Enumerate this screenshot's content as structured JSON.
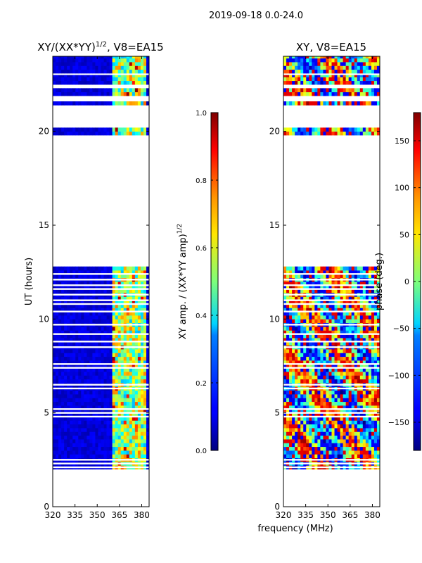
{
  "suptitle": "2019-09-18 0.0-24.0",
  "xlabel": "frequency (MHz)",
  "colors": {
    "masked": "#ffffff",
    "jet_low": "#00007f",
    "jet_high": "#7f0000"
  },
  "chart_data": [
    {
      "type": "heatmap",
      "title_main": "XY/(XX*YY)",
      "title_sup": "1/2",
      "title_tail": ", V8=EA15",
      "ylabel": "UT (hours)",
      "xlim": [
        320,
        385
      ],
      "ylim": [
        0,
        24
      ],
      "xticks": [
        320,
        335,
        350,
        365,
        380
      ],
      "yticks": [
        0,
        5,
        10,
        15,
        20
      ],
      "colorbar": {
        "label_main": "XY amp. / (XX*YY amp)",
        "label_sup": "1/2",
        "range": [
          0.0,
          1.0
        ],
        "ticks": [
          0.0,
          0.2,
          0.4,
          0.6,
          0.8,
          1.0
        ],
        "tick_labels": [
          "0.0",
          "0.2",
          "0.4",
          "0.6",
          "0.8",
          "1.0"
        ]
      },
      "data_time_ranges": [
        [
          2.0,
          12.8
        ],
        [
          19.8,
          20.2
        ],
        [
          21.4,
          21.6
        ],
        [
          21.9,
          22.3
        ],
        [
          22.5,
          23.0
        ],
        [
          23.1,
          24.0
        ]
      ],
      "masked_time_rows": [
        2.1,
        2.3,
        2.5,
        4.8,
        5.0,
        5.2,
        6.3,
        6.5,
        7.4,
        7.6,
        8.5,
        8.8,
        9.2,
        9.7,
        10.4,
        10.8,
        11.0,
        11.3,
        11.6,
        11.8,
        12.1,
        12.4
      ],
      "signal_band_mhz": [
        361,
        383
      ]
    },
    {
      "type": "heatmap",
      "title_main": "XY, V8=EA15",
      "title_sup": "",
      "title_tail": "",
      "xlim": [
        320,
        385
      ],
      "ylim": [
        0,
        24
      ],
      "xticks": [
        320,
        335,
        350,
        365,
        380
      ],
      "yticks": [
        0,
        5,
        10,
        15,
        20
      ],
      "colorbar": {
        "label_main": "phase (deg.)",
        "label_sup": "",
        "range": [
          -180,
          180
        ],
        "ticks": [
          -150,
          -100,
          -50,
          0,
          50,
          100,
          150
        ],
        "tick_labels": [
          "−150",
          "−100",
          "−50",
          "0",
          "50",
          "100",
          "150"
        ]
      },
      "data_time_ranges": [
        [
          2.0,
          12.8
        ],
        [
          19.8,
          20.2
        ],
        [
          21.4,
          21.6
        ],
        [
          21.9,
          22.3
        ],
        [
          22.5,
          23.0
        ],
        [
          23.1,
          24.0
        ]
      ],
      "masked_time_rows": [
        2.1,
        2.3,
        2.5,
        4.8,
        5.0,
        5.2,
        6.3,
        6.5,
        7.4,
        7.6,
        8.5,
        8.8,
        9.2,
        9.7,
        10.4,
        10.8,
        11.0,
        11.3,
        11.6,
        11.8,
        12.1,
        12.4
      ]
    }
  ]
}
